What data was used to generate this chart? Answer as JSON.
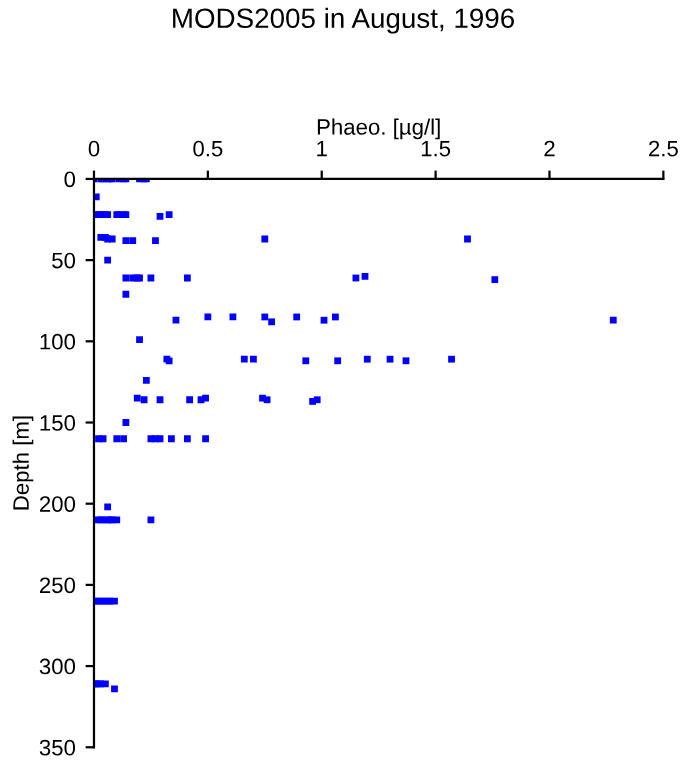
{
  "chart_data": {
    "type": "scatter",
    "title": "MODS2005 in August, 1996",
    "xlabel": "Phaeo. [µg/l]",
    "ylabel": "Depth [m]",
    "xlim": [
      0,
      2.5
    ],
    "xticks": [
      0,
      0.5,
      1,
      1.5,
      2,
      2.5
    ],
    "ylim": [
      350,
      0
    ],
    "yticks": [
      0,
      50,
      100,
      150,
      200,
      250,
      300,
      350
    ],
    "grid": false,
    "marker": "square",
    "series": [
      {
        "color": "#0000ff",
        "x": [
          0,
          0.03,
          0.04,
          0.06,
          0.07,
          0.08,
          0.11,
          0.13,
          0.14,
          0.2,
          0.22,
          0.23,
          0.01,
          0.01,
          0.02,
          0.03,
          0.05,
          0.06,
          0.1,
          0.11,
          0.13,
          0.14,
          0.29,
          0.33,
          0.03,
          0.05,
          0.06,
          0.08,
          0.14,
          0.17,
          0.27,
          0.75,
          1.64,
          0.06,
          0.14,
          0.17,
          0.19,
          0.2,
          0.25,
          0.41,
          1.15,
          1.19,
          1.76,
          0.14,
          0.36,
          0.5,
          0.61,
          0.75,
          0.78,
          0.89,
          1.01,
          1.06,
          2.28,
          0.2,
          0.32,
          0.33,
          0.66,
          0.7,
          0.93,
          1.07,
          1.2,
          1.3,
          1.37,
          1.57,
          0.23,
          0.19,
          0.22,
          0.29,
          0.42,
          0.47,
          0.49,
          0.74,
          0.76,
          0.96,
          0.98,
          0.14,
          0.02,
          0.04,
          0.1,
          0.13,
          0.25,
          0.27,
          0.29,
          0.34,
          0.41,
          0.49,
          0.06,
          0.01,
          0.03,
          0.04,
          0.06,
          0.07,
          0.08,
          0.1,
          0.25,
          0,
          0.01,
          0.03,
          0.04,
          0.06,
          0.07,
          0.09,
          0,
          0.01,
          0.02,
          0.03,
          0.05,
          0.09
        ],
        "values": [
          0,
          0,
          0,
          0,
          0,
          0,
          0,
          0,
          0,
          0,
          0,
          0,
          11,
          22,
          22,
          22,
          22,
          22,
          22,
          22,
          22,
          22,
          23,
          22,
          36,
          36,
          37,
          37,
          38,
          38,
          38,
          37,
          37,
          50,
          61,
          61,
          61,
          61,
          61,
          61,
          61,
          60,
          62,
          71,
          87,
          85,
          85,
          85,
          88,
          85,
          87,
          85,
          87,
          99,
          111,
          112,
          111,
          111,
          112,
          112,
          111,
          111,
          112,
          111,
          124,
          135,
          136,
          136,
          136,
          136,
          135,
          135,
          136,
          137,
          136,
          150,
          160,
          160,
          160,
          160,
          160,
          160,
          160,
          160,
          160,
          160,
          202,
          210,
          210,
          210,
          210,
          210,
          210,
          210,
          210,
          260,
          260,
          260,
          260,
          260,
          260,
          260,
          311,
          311,
          311,
          311,
          311,
          314
        ]
      }
    ]
  }
}
